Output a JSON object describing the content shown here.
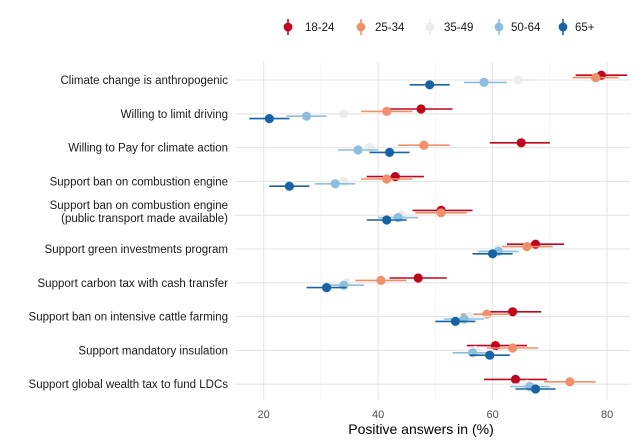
{
  "chart_data": {
    "type": "scatter",
    "subtype": "dot-with-error-bars",
    "orientation": "horizontal",
    "xlabel": "Positive answers in (%)",
    "ylabel": "",
    "xlim": [
      15,
      84
    ],
    "xticks": [
      20,
      40,
      60,
      80
    ],
    "grid": true,
    "legend_position": "top",
    "categories": [
      "Climate change is anthropogenic",
      "Willing to limit driving",
      "Willing to Pay for climate action",
      "Support ban on combustion engine",
      [
        "Support ban on combustion engine",
        "(public transport made available)"
      ],
      "Support green investments program",
      "Support carbon tax with cash transfer",
      "Support ban on intensive cattle farming",
      "Support mandatory insulation",
      "Support global wealth tax to fund LDCs"
    ],
    "series": [
      {
        "name": "18-24",
        "color": "#c0061f",
        "values": [
          79,
          47.5,
          65,
          43,
          51,
          67.5,
          47,
          63.5,
          60.5,
          64
        ],
        "ci": [
          [
            74.5,
            83.5
          ],
          [
            42,
            53
          ],
          [
            59.5,
            70
          ],
          [
            38,
            48
          ],
          [
            46,
            56.5
          ],
          [
            62.5,
            72.5
          ],
          [
            42,
            52
          ],
          [
            58.5,
            68.5
          ],
          [
            55.5,
            66
          ],
          [
            58.5,
            69.5
          ]
        ]
      },
      {
        "name": "25-34",
        "color": "#f0906a",
        "values": [
          78,
          41.5,
          48,
          41.5,
          51,
          66,
          40.5,
          59,
          63.5,
          73.5
        ],
        "ci": [
          [
            74,
            82
          ],
          [
            37,
            46
          ],
          [
            43.5,
            52.5
          ],
          [
            37,
            46
          ],
          [
            46.5,
            55.5
          ],
          [
            61.5,
            70.5
          ],
          [
            36,
            45
          ],
          [
            54.5,
            63
          ],
          [
            59,
            68
          ],
          [
            69,
            78
          ]
        ]
      },
      {
        "name": "35-49",
        "color": "#ececec",
        "values": [
          64.5,
          34,
          38.5,
          34,
          44,
          61,
          34.5,
          56,
          57,
          66
        ],
        "ci": [
          [
            61,
            68
          ],
          [
            30.5,
            37.5
          ],
          [
            35,
            42
          ],
          [
            30.5,
            37.5
          ],
          [
            40.5,
            47.5
          ],
          [
            57.5,
            64.5
          ],
          [
            31,
            38
          ],
          [
            52.5,
            59.5
          ],
          [
            53.5,
            60.5
          ],
          [
            62.5,
            69.5
          ]
        ]
      },
      {
        "name": "50-64",
        "color": "#8dbfdd",
        "values": [
          58.5,
          27.5,
          36.5,
          32.5,
          43.5,
          61,
          34,
          55,
          56.5,
          66.5
        ],
        "ci": [
          [
            55,
            62.5
          ],
          [
            24,
            31
          ],
          [
            33,
            40
          ],
          [
            29,
            36
          ],
          [
            40,
            47
          ],
          [
            57.5,
            64.5
          ],
          [
            30.5,
            37.5
          ],
          [
            51.5,
            58.5
          ],
          [
            53,
            60
          ],
          [
            63,
            70
          ]
        ]
      },
      {
        "name": "65+",
        "color": "#1763a6",
        "values": [
          49,
          21,
          42,
          24.5,
          41.5,
          60,
          31,
          53.5,
          59.5,
          67.5
        ],
        "ci": [
          [
            45.5,
            52.5
          ],
          [
            17.5,
            24.5
          ],
          [
            38.5,
            45.5
          ],
          [
            21,
            28
          ],
          [
            38,
            45
          ],
          [
            56.5,
            63.5
          ],
          [
            27.5,
            34.5
          ],
          [
            50,
            57
          ],
          [
            56,
            63
          ],
          [
            64,
            71
          ]
        ]
      }
    ]
  }
}
